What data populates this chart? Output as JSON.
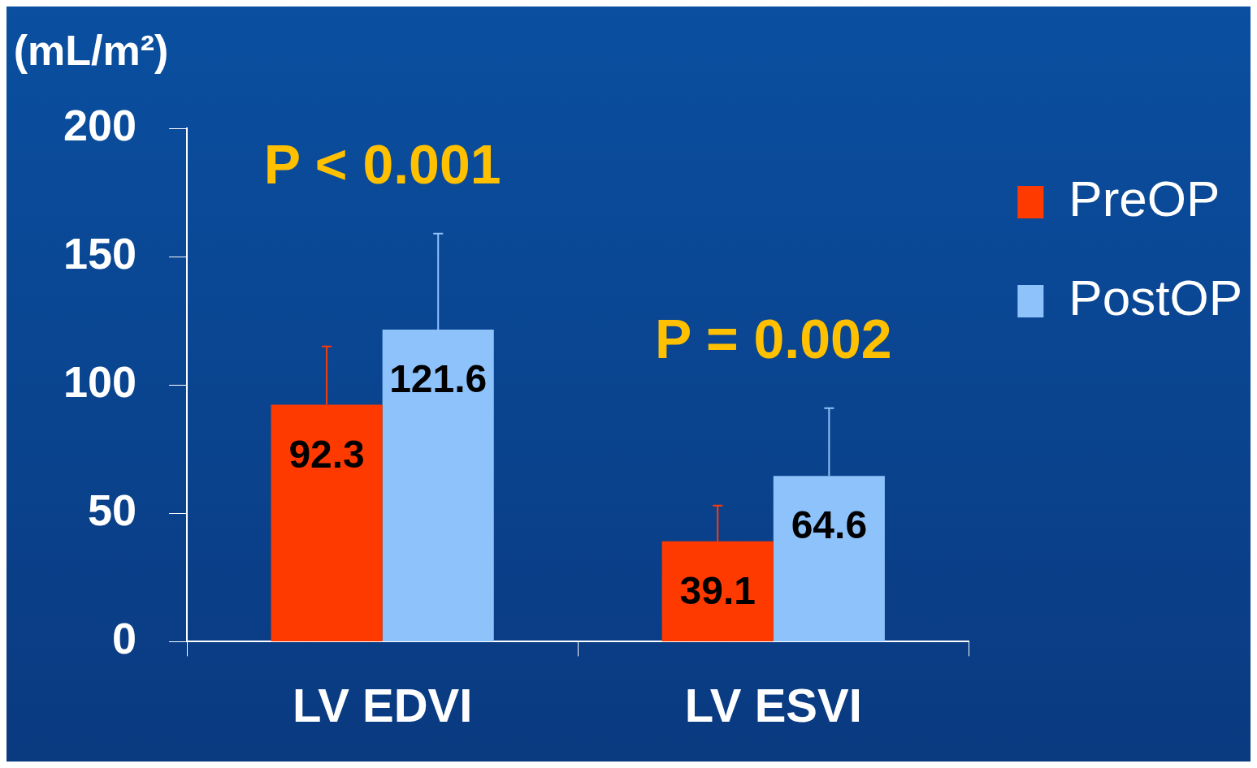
{
  "chart_data": {
    "type": "bar",
    "ylabel": "(mL/m²)",
    "categories": [
      "LV EDVI",
      "LV ESVI"
    ],
    "series": [
      {
        "name": "PreOP",
        "color": "#ff3a00",
        "values": [
          92.3,
          39.1
        ],
        "errors": [
          [
            92.3,
            115
          ],
          [
            39.1,
            53
          ]
        ]
      },
      {
        "name": "PostOP",
        "color": "#8ec2fa",
        "values": [
          121.6,
          64.6
        ],
        "errors": [
          [
            121.6,
            159
          ],
          [
            64.6,
            91
          ]
        ]
      }
    ],
    "ylim": [
      0,
      200
    ],
    "yticks": [
      0,
      50,
      100,
      150,
      200
    ],
    "grid": false,
    "legend": "top right",
    "data_labels": true,
    "annotations": [
      "P < 0.001",
      "P = 0.002"
    ]
  }
}
